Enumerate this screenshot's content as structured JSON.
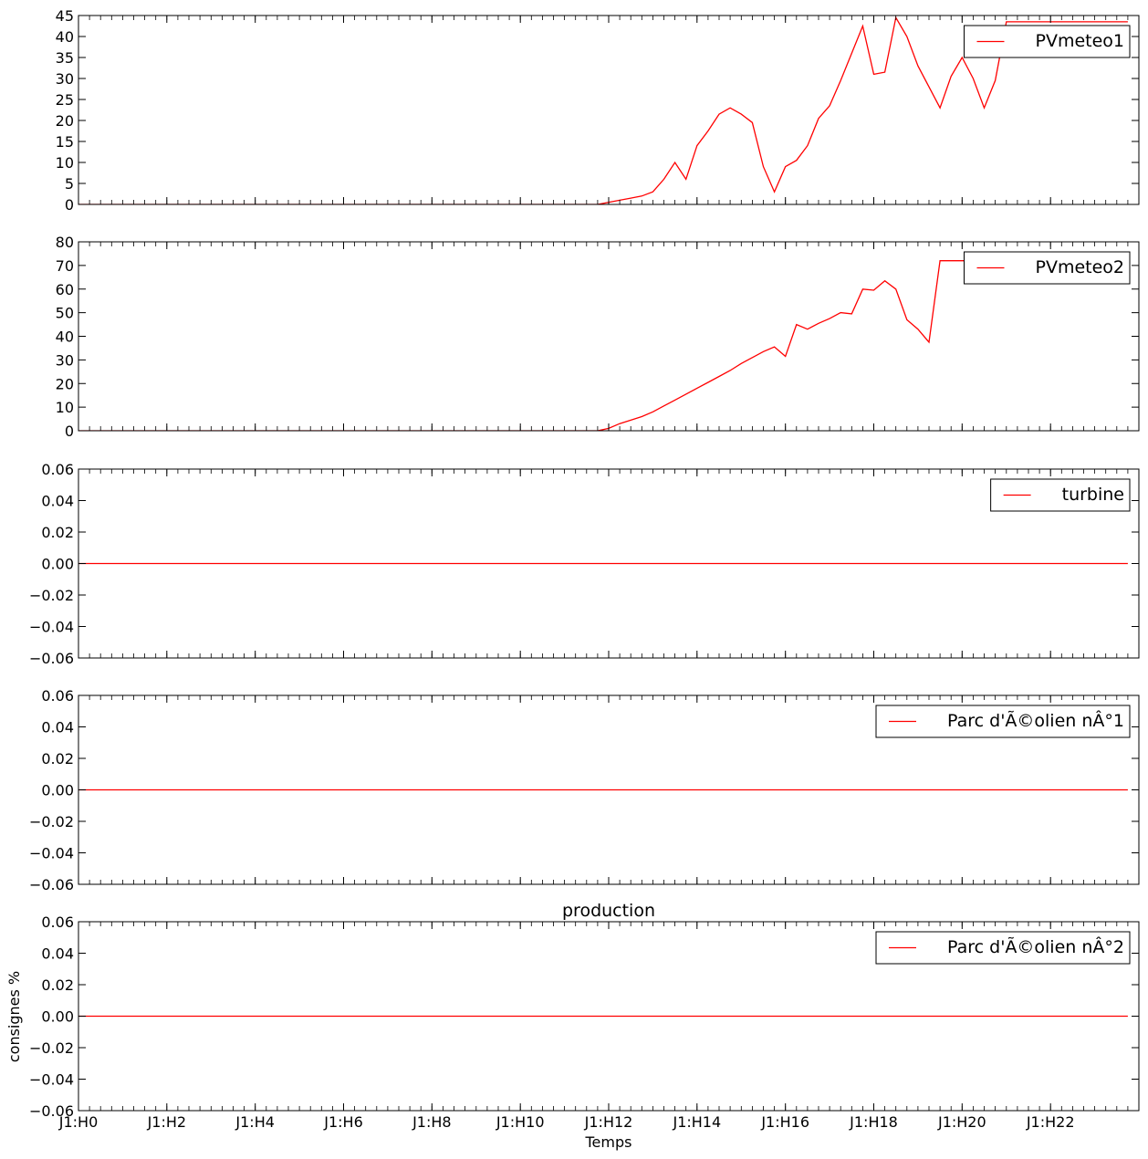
{
  "figure": {
    "xlabel": "Temps",
    "ylabel": "consignes %",
    "title": "production",
    "line_color": "#ff0000"
  },
  "chart_data": [
    {
      "type": "line",
      "legend": "PVmeteo1",
      "legend_placement": "top-right",
      "ylim": [
        0,
        45
      ],
      "yticks": [
        "0",
        "5",
        "10",
        "15",
        "20",
        "25",
        "30",
        "35",
        "40",
        "45"
      ],
      "x": [
        0,
        11.75,
        12.25,
        12.5,
        12.75,
        13.0,
        13.25,
        13.5,
        13.75,
        14.0,
        14.25,
        14.5,
        14.75,
        15.0,
        15.25,
        15.5,
        15.75,
        16.0,
        16.25,
        16.5,
        16.75,
        17.0,
        17.25,
        17.5,
        17.75,
        18.0,
        18.25,
        18.5,
        18.75,
        19.0,
        19.25,
        19.5,
        19.75,
        20.0,
        20.25,
        20.5,
        20.75,
        21.0,
        21.25,
        21.5,
        21.75,
        22.0,
        22.25,
        22.5,
        22.75,
        23.0,
        23.25,
        23.5,
        23.75
      ],
      "values": [
        0,
        0,
        1,
        1.5,
        2,
        3,
        6,
        10,
        6,
        14,
        17.5,
        21.5,
        23,
        21.5,
        19.5,
        9,
        3,
        9,
        10.5,
        14,
        20.5,
        23.5,
        29.5,
        36,
        42.5,
        31,
        31.5,
        44.5,
        40,
        33,
        28,
        23,
        30.5,
        35,
        30,
        23,
        29.5,
        43.5,
        43.5,
        43.5,
        43.5,
        43.5,
        43.5,
        43.5,
        43.5,
        43.5,
        43.5,
        43.5,
        43.5
      ]
    },
    {
      "type": "line",
      "legend": "PVmeteo2",
      "legend_placement": "top-right",
      "ylim": [
        0,
        80
      ],
      "yticks": [
        "0",
        "10",
        "20",
        "30",
        "40",
        "50",
        "60",
        "70",
        "80"
      ],
      "x": [
        0,
        11.75,
        12.0,
        12.25,
        12.5,
        12.75,
        13.0,
        13.25,
        13.5,
        13.75,
        14.0,
        14.25,
        14.5,
        14.75,
        15.0,
        15.25,
        15.5,
        15.75,
        16.0,
        16.25,
        16.5,
        16.75,
        17.0,
        17.25,
        17.5,
        17.75,
        18.0,
        18.25,
        18.5,
        18.75,
        19.0,
        19.25,
        19.5,
        19.75,
        20.0,
        20.25,
        20.5,
        20.75,
        21.0,
        21.25,
        21.5,
        21.75,
        22.0,
        22.25,
        22.5,
        22.75,
        23.0,
        23.25,
        23.5,
        23.75
      ],
      "values": [
        0,
        0,
        1,
        3,
        4.5,
        6,
        8,
        10.5,
        13,
        15.5,
        18,
        20.5,
        23,
        25.5,
        28.5,
        31,
        33.5,
        35.5,
        31.5,
        45,
        43,
        45.5,
        47.5,
        50,
        49.5,
        60,
        59.5,
        63.5,
        60,
        47,
        43,
        37.5,
        72,
        72,
        72,
        72,
        72,
        72,
        72,
        72,
        72,
        72,
        72,
        72,
        72,
        72,
        72,
        72,
        72,
        72
      ]
    },
    {
      "type": "line",
      "legend": "turbine",
      "legend_placement": "top-right",
      "ylim": [
        -0.06,
        0.06
      ],
      "yticks": [
        "−0.06",
        "−0.04",
        "−0.02",
        "0.00",
        "0.02",
        "0.04",
        "0.06"
      ],
      "x": [
        0,
        23.75
      ],
      "values": [
        0,
        0
      ]
    },
    {
      "type": "line",
      "legend": "Parc d'Ã©olien nÂ°1",
      "legend_placement": "top-right",
      "ylim": [
        -0.06,
        0.06
      ],
      "yticks": [
        "−0.06",
        "−0.04",
        "−0.02",
        "0.00",
        "0.02",
        "0.04",
        "0.06"
      ],
      "x": [
        0,
        23.75
      ],
      "values": [
        0,
        0
      ]
    },
    {
      "type": "line",
      "legend": "Parc d'Ã©olien nÂ°2",
      "legend_placement": "top-right",
      "ylim": [
        -0.06,
        0.06
      ],
      "yticks": [
        "−0.06",
        "−0.04",
        "−0.02",
        "0.00",
        "0.02",
        "0.04",
        "0.06"
      ],
      "x": [
        0,
        23.75
      ],
      "values": [
        0,
        0
      ]
    }
  ],
  "x_axis": {
    "range": [
      0,
      24
    ],
    "ticks": [
      0,
      2,
      4,
      6,
      8,
      10,
      12,
      14,
      16,
      18,
      20,
      22
    ],
    "tick_labels": [
      "J1:H0",
      "J1:H2",
      "J1:H4",
      "J1:H6",
      "J1:H8",
      "J1:H10",
      "J1:H12",
      "J1:H14",
      "J1:H16",
      "J1:H18",
      "J1:H20",
      "J1:H22"
    ],
    "minor_step_hours": 0.25
  },
  "grid": false
}
